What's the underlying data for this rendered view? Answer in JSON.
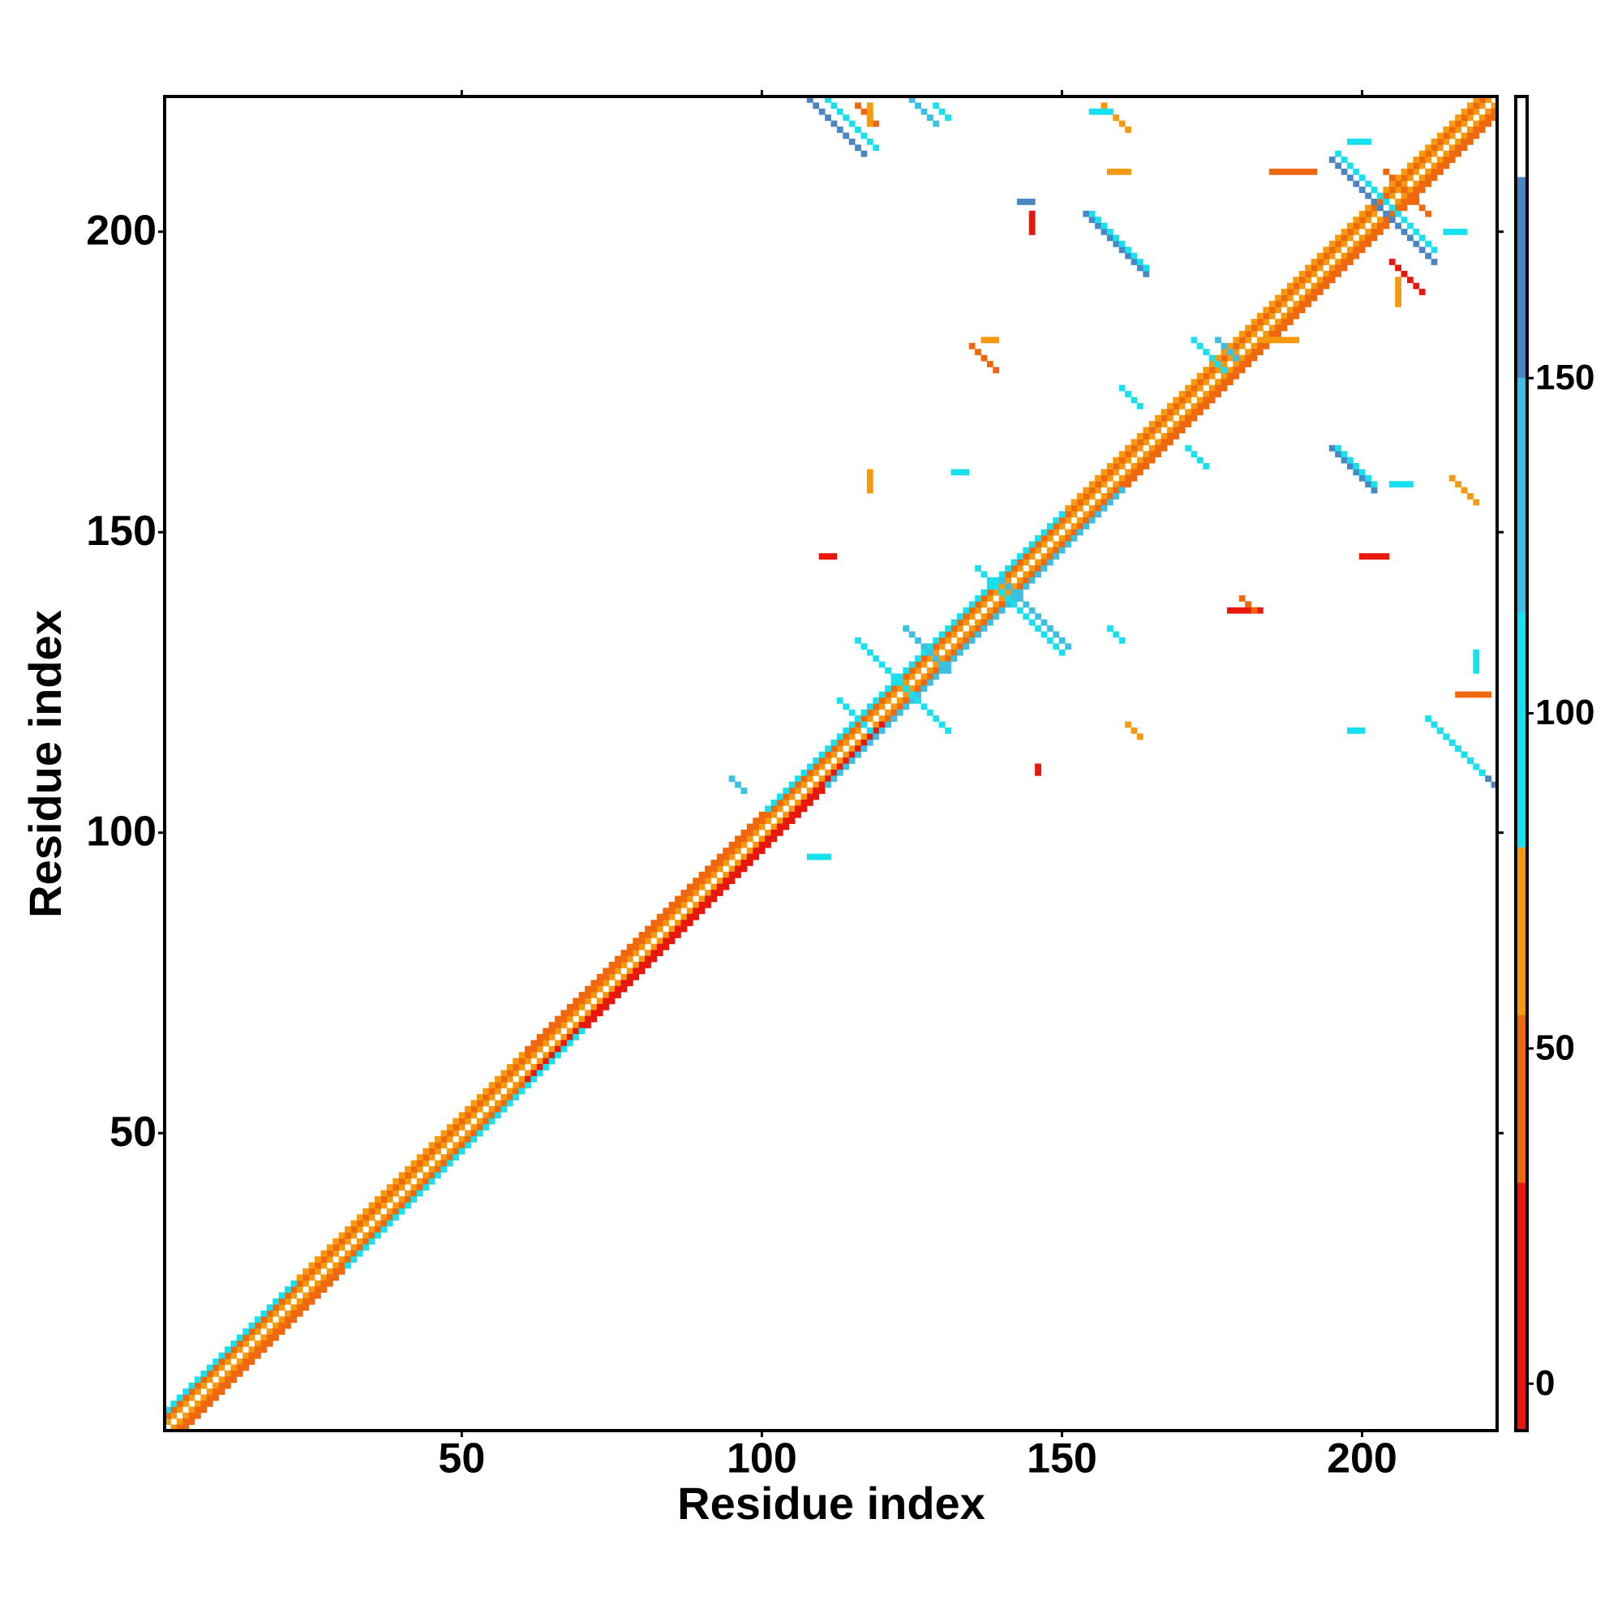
{
  "chart_data": {
    "type": "heatmap",
    "xlabel": "Residue index",
    "ylabel": "Residue index",
    "xlim": [
      0.5,
      222.5
    ],
    "ylim": [
      0.5,
      222.5
    ],
    "xticks": [
      50,
      100,
      150,
      200
    ],
    "yticks": [
      50,
      100,
      150,
      200
    ],
    "colorbar": {
      "lim": [
        -7,
        192
      ],
      "ticks": [
        0,
        50,
        100,
        150
      ],
      "bounds": [
        -7,
        30,
        55,
        80,
        115,
        150,
        180,
        192
      ],
      "colors": [
        "#e8180c",
        "#f0680e",
        "#f59a0f",
        "#18e0ee",
        "#3cbfe2",
        "#4a86c2",
        "#ffffff"
      ]
    },
    "strips": [
      {
        "x": 1,
        "y": 2,
        "dx": 1,
        "dy": 1,
        "n": 221,
        "value": 65
      },
      {
        "x": 2,
        "y": 1,
        "dx": 1,
        "dy": 1,
        "n": 221,
        "value": 65
      },
      {
        "x": 1,
        "y": 3,
        "dx": 1,
        "dy": 1,
        "n": 220,
        "value": 40
      },
      {
        "x": 3,
        "y": 1,
        "dx": 1,
        "dy": 1,
        "n": 58,
        "value": 40
      },
      {
        "x": 61,
        "y": 59,
        "dx": 1,
        "dy": 1,
        "n": 60,
        "value": 10
      },
      {
        "x": 121,
        "y": 119,
        "dx": 1,
        "dy": 1,
        "n": 102,
        "value": 40
      },
      {
        "x": 1,
        "y": 4,
        "dx": 1,
        "dy": 1,
        "n": 22,
        "value": 95
      },
      {
        "x": 23,
        "y": 26,
        "dx": 1,
        "dy": 1,
        "n": 38,
        "value": 65
      },
      {
        "x": 61,
        "y": 64,
        "dx": 1,
        "dy": 1,
        "n": 40,
        "value": 40
      },
      {
        "x": 101,
        "y": 104,
        "dx": 1,
        "dy": 1,
        "n": 50,
        "value": 95
      },
      {
        "x": 151,
        "y": 154,
        "dx": 1,
        "dy": 1,
        "n": 69,
        "value": 65
      },
      {
        "x": 4,
        "y": 1,
        "dx": 1,
        "dy": 1,
        "n": 27,
        "value": 40
      },
      {
        "x": 31,
        "y": 28,
        "dx": 1,
        "dy": 1,
        "n": 40,
        "value": 95
      },
      {
        "x": 71,
        "y": 68,
        "dx": 1,
        "dy": 1,
        "n": 40,
        "value": 10
      },
      {
        "x": 111,
        "y": 108,
        "dx": 1,
        "dy": 1,
        "n": 50,
        "value": 130
      },
      {
        "x": 161,
        "y": 158,
        "dx": 1,
        "dy": 1,
        "n": 62,
        "value": 40
      },
      {
        "x": 108,
        "y": 222,
        "dx": 1,
        "dy": -1,
        "n": 10,
        "value": 165
      },
      {
        "x": 111,
        "y": 222,
        "dx": 1,
        "dy": -1,
        "n": 9,
        "value": 95
      },
      {
        "x": 116,
        "y": 221,
        "dx": 1,
        "dy": -1,
        "n": 4,
        "value": 40
      },
      {
        "x": 118,
        "y": 221,
        "dx": 0,
        "dy": -1,
        "n": 4,
        "value": 65
      },
      {
        "x": 125,
        "y": 222,
        "dx": 1,
        "dy": -1,
        "n": 5,
        "value": 130
      },
      {
        "x": 129,
        "y": 221,
        "dx": 1,
        "dy": -1,
        "n": 3,
        "value": 95
      },
      {
        "x": 157,
        "y": 221,
        "dx": 1,
        "dy": -1,
        "n": 5,
        "value": 65
      },
      {
        "x": 155,
        "y": 220,
        "dx": 1,
        "dy": 0,
        "n": 4,
        "value": 95
      },
      {
        "x": 154,
        "y": 203,
        "dx": 1,
        "dy": -1,
        "n": 11,
        "value": 165
      },
      {
        "x": 155,
        "y": 203,
        "dx": 1,
        "dy": -1,
        "n": 10,
        "value": 95
      },
      {
        "x": 145,
        "y": 203,
        "dx": 0,
        "dy": -1,
        "n": 4,
        "value": 10
      },
      {
        "x": 143,
        "y": 205,
        "dx": 1,
        "dy": 0,
        "n": 3,
        "value": 165
      },
      {
        "x": 158,
        "y": 210,
        "dx": 1,
        "dy": 0,
        "n": 4,
        "value": 65
      },
      {
        "x": 195,
        "y": 212,
        "dx": 1,
        "dy": -1,
        "n": 18,
        "value": 165
      },
      {
        "x": 196,
        "y": 213,
        "dx": 1,
        "dy": -1,
        "n": 17,
        "value": 95
      },
      {
        "x": 198,
        "y": 215,
        "dx": 1,
        "dy": 0,
        "n": 4,
        "value": 95
      },
      {
        "x": 185,
        "y": 210,
        "dx": 1,
        "dy": 0,
        "n": 8,
        "value": 40
      },
      {
        "x": 205,
        "y": 195,
        "dx": 1,
        "dy": -1,
        "n": 6,
        "value": 10
      },
      {
        "x": 206,
        "y": 192,
        "dx": 0,
        "dy": -1,
        "n": 5,
        "value": 65
      },
      {
        "x": 214,
        "y": 200,
        "dx": 1,
        "dy": 0,
        "n": 4,
        "value": 95
      },
      {
        "x": 195,
        "y": 164,
        "dx": 1,
        "dy": -1,
        "n": 8,
        "value": 165
      },
      {
        "x": 196,
        "y": 164,
        "dx": 1,
        "dy": -1,
        "n": 7,
        "value": 95
      },
      {
        "x": 205,
        "y": 158,
        "dx": 1,
        "dy": 0,
        "n": 4,
        "value": 95
      },
      {
        "x": 215,
        "y": 159,
        "dx": 1,
        "dy": -1,
        "n": 5,
        "value": 65
      },
      {
        "x": 212,
        "y": 118,
        "dx": 1,
        "dy": -1,
        "n": 11,
        "value": 165
      },
      {
        "x": 211,
        "y": 119,
        "dx": 1,
        "dy": -1,
        "n": 10,
        "value": 95
      },
      {
        "x": 216,
        "y": 123,
        "dx": 1,
        "dy": 0,
        "n": 6,
        "value": 40
      },
      {
        "x": 219,
        "y": 130,
        "dx": 0,
        "dy": -1,
        "n": 4,
        "value": 95
      },
      {
        "x": 160,
        "y": 174,
        "dx": 1,
        "dy": -1,
        "n": 4,
        "value": 95
      },
      {
        "x": 172,
        "y": 182,
        "dx": 1,
        "dy": -1,
        "n": 6,
        "value": 95
      },
      {
        "x": 176,
        "y": 182,
        "dx": 1,
        "dy": -1,
        "n": 4,
        "value": 130
      },
      {
        "x": 171,
        "y": 164,
        "dx": 1,
        "dy": -1,
        "n": 4,
        "value": 95
      },
      {
        "x": 132,
        "y": 160,
        "dx": 1,
        "dy": 0,
        "n": 3,
        "value": 95
      },
      {
        "x": 116,
        "y": 132,
        "dx": 1,
        "dy": -1,
        "n": 16,
        "value": 95
      },
      {
        "x": 124,
        "y": 134,
        "dx": 1,
        "dy": -1,
        "n": 8,
        "value": 130
      },
      {
        "x": 113,
        "y": 122,
        "dx": 1,
        "dy": -1,
        "n": 6,
        "value": 95
      },
      {
        "x": 136,
        "y": 144,
        "dx": 1,
        "dy": -1,
        "n": 15,
        "value": 95
      },
      {
        "x": 140,
        "y": 142,
        "dx": 1,
        "dy": -1,
        "n": 12,
        "value": 130
      },
      {
        "x": 95,
        "y": 109,
        "dx": 1,
        "dy": -1,
        "n": 3,
        "value": 130
      },
      {
        "x": 108,
        "y": 96,
        "dx": 1,
        "dy": 0,
        "n": 4,
        "value": 95
      },
      {
        "x": 135,
        "y": 181,
        "dx": 1,
        "dy": -1,
        "n": 5,
        "value": 40
      },
      {
        "x": 137,
        "y": 182,
        "dx": 1,
        "dy": 0,
        "n": 3,
        "value": 65
      },
      {
        "x": 178,
        "y": 137,
        "dx": 1,
        "dy": 0,
        "n": 6,
        "value": 10
      },
      {
        "x": 180,
        "y": 139,
        "dx": 1,
        "dy": -1,
        "n": 3,
        "value": 40
      },
      {
        "x": 184,
        "y": 182,
        "dx": 1,
        "dy": 0,
        "n": 6,
        "value": 65
      },
      {
        "x": 158,
        "y": 134,
        "dx": 1,
        "dy": -1,
        "n": 3,
        "value": 95
      },
      {
        "x": 110,
        "y": 146,
        "dx": 1,
        "dy": 0,
        "n": 3,
        "value": 10
      },
      {
        "x": 200,
        "y": 146,
        "dx": 1,
        "dy": 0,
        "n": 5,
        "value": 10
      },
      {
        "x": 118,
        "y": 160,
        "dx": 0,
        "dy": -1,
        "n": 4,
        "value": 65
      },
      {
        "x": 146,
        "y": 111,
        "dx": 0,
        "dy": -1,
        "n": 2,
        "value": 10
      },
      {
        "x": 161,
        "y": 118,
        "dx": 1,
        "dy": -1,
        "n": 3,
        "value": 65
      },
      {
        "x": 198,
        "y": 117,
        "dx": 1,
        "dy": 0,
        "n": 3,
        "value": 95
      },
      {
        "x": 204,
        "y": 210,
        "dx": 1,
        "dy": -1,
        "n": 8,
        "value": 40
      }
    ]
  }
}
